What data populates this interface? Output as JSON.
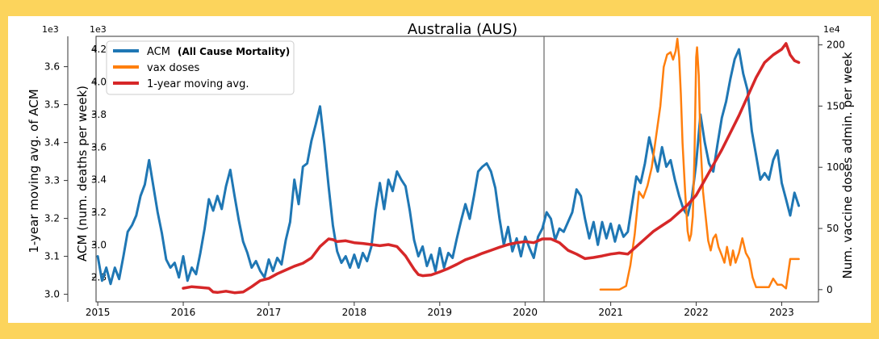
{
  "chart_data": {
    "type": "line",
    "title": "Australia (AUS)",
    "left_axis": {
      "label": "1-year moving avg. of ACM",
      "multiplier": "1e3",
      "ylim": [
        2.98,
        3.68
      ],
      "ticks": [
        3.0,
        3.1,
        3.2,
        3.3,
        3.4,
        3.5,
        3.6
      ],
      "tick_labels": [
        "3.0",
        "3.1",
        "3.2",
        "3.3",
        "3.4",
        "3.5",
        "3.6"
      ]
    },
    "inner_axis": {
      "label": "ACM (num. deaths per week)",
      "multiplier": "1e3",
      "ylim": [
        2.65,
        4.28
      ],
      "ticks": [
        2.8,
        3.0,
        3.2,
        3.4,
        3.6,
        3.8,
        4.0,
        4.2
      ],
      "tick_labels": [
        "2.8",
        "3.0",
        "3.2",
        "3.4",
        "3.6",
        "3.8",
        "4.0",
        "4.2"
      ]
    },
    "right_axis": {
      "label": "Num. vaccine doses admin. per week",
      "multiplier": "1e4",
      "ylim": [
        -10,
        207
      ],
      "ticks": [
        0,
        50,
        100,
        150,
        200
      ],
      "tick_labels": [
        "0",
        "50",
        "100",
        "150",
        "200"
      ]
    },
    "x_axis": {
      "xlim": [
        2014.98,
        2023.43
      ],
      "ticks": [
        2015,
        2016,
        2017,
        2018,
        2019,
        2020,
        2021,
        2022,
        2023
      ],
      "tick_labels": [
        "2015",
        "2016",
        "2017",
        "2018",
        "2019",
        "2020",
        "2021",
        "2022",
        "2023"
      ],
      "vertical_line": 2020.22
    },
    "grid": false,
    "legend": {
      "placement": "top-left",
      "entries": [
        {
          "label": "ACM",
          "note": "(All Cause Mortality)",
          "color": "#1f77b4"
        },
        {
          "label": "vax doses",
          "note": "",
          "color": "#ff7f0e"
        },
        {
          "label": "1-year moving avg.",
          "note": "",
          "color": "#d62728"
        }
      ]
    },
    "series": [
      {
        "name": "ACM",
        "axis": "inner",
        "color": "#1f77b4",
        "x": [
          2015.0,
          2015.05,
          2015.1,
          2015.15,
          2015.2,
          2015.25,
          2015.3,
          2015.35,
          2015.4,
          2015.45,
          2015.5,
          2015.55,
          2015.6,
          2015.65,
          2015.7,
          2015.75,
          2015.8,
          2015.85,
          2015.9,
          2015.95,
          2016.0,
          2016.05,
          2016.1,
          2016.15,
          2016.2,
          2016.25,
          2016.3,
          2016.35,
          2016.4,
          2016.45,
          2016.5,
          2016.55,
          2016.6,
          2016.65,
          2016.7,
          2016.75,
          2016.8,
          2016.85,
          2016.9,
          2016.95,
          2017.0,
          2017.05,
          2017.1,
          2017.15,
          2017.2,
          2017.25,
          2017.3,
          2017.35,
          2017.4,
          2017.45,
          2017.5,
          2017.55,
          2017.6,
          2017.65,
          2017.7,
          2017.75,
          2017.8,
          2017.85,
          2017.9,
          2017.95,
          2018.0,
          2018.05,
          2018.1,
          2018.15,
          2018.2,
          2018.25,
          2018.3,
          2018.35,
          2018.4,
          2018.45,
          2018.5,
          2018.55,
          2018.6,
          2018.65,
          2018.7,
          2018.75,
          2018.8,
          2018.85,
          2018.9,
          2018.95,
          2019.0,
          2019.05,
          2019.1,
          2019.15,
          2019.2,
          2019.25,
          2019.3,
          2019.35,
          2019.4,
          2019.45,
          2019.5,
          2019.55,
          2019.6,
          2019.65,
          2019.7,
          2019.75,
          2019.8,
          2019.85,
          2019.9,
          2019.95,
          2020.0,
          2020.05,
          2020.1,
          2020.15,
          2020.2,
          2020.25,
          2020.3,
          2020.35,
          2020.4,
          2020.45,
          2020.5,
          2020.55,
          2020.6,
          2020.65,
          2020.7,
          2020.75,
          2020.8,
          2020.85,
          2020.9,
          2020.95,
          2021.0,
          2021.05,
          2021.1,
          2021.15,
          2021.2,
          2021.25,
          2021.3,
          2021.35,
          2021.4,
          2021.45,
          2021.5,
          2021.55,
          2021.6,
          2021.65,
          2021.7,
          2021.75,
          2021.8,
          2021.85,
          2021.9,
          2021.95,
          2022.0,
          2022.05,
          2022.1,
          2022.15,
          2022.2,
          2022.25,
          2022.3,
          2022.35,
          2022.4,
          2022.45,
          2022.5,
          2022.55,
          2022.6,
          2022.65,
          2022.7,
          2022.75,
          2022.8,
          2022.85,
          2022.9,
          2022.95,
          2023.0,
          2023.05,
          2023.1,
          2023.15,
          2023.2
        ],
        "values": [
          2.93,
          2.78,
          2.86,
          2.76,
          2.86,
          2.79,
          2.93,
          3.08,
          3.12,
          3.18,
          3.3,
          3.37,
          3.52,
          3.36,
          3.2,
          3.07,
          2.91,
          2.86,
          2.89,
          2.8,
          2.93,
          2.78,
          2.86,
          2.82,
          2.95,
          3.1,
          3.28,
          3.21,
          3.3,
          3.22,
          3.36,
          3.46,
          3.3,
          3.15,
          3.02,
          2.95,
          2.86,
          2.9,
          2.84,
          2.8,
          2.91,
          2.84,
          2.92,
          2.88,
          3.03,
          3.14,
          3.4,
          3.25,
          3.48,
          3.5,
          3.64,
          3.74,
          3.85,
          3.62,
          3.36,
          3.12,
          2.96,
          2.89,
          2.93,
          2.86,
          2.94,
          2.86,
          2.95,
          2.9,
          2.99,
          3.21,
          3.38,
          3.22,
          3.4,
          3.33,
          3.45,
          3.4,
          3.36,
          3.21,
          3.03,
          2.93,
          2.99,
          2.87,
          2.94,
          2.84,
          2.98,
          2.86,
          2.95,
          2.92,
          3.04,
          3.15,
          3.25,
          3.16,
          3.3,
          3.45,
          3.48,
          3.5,
          3.45,
          3.35,
          3.16,
          3.0,
          3.11,
          2.96,
          3.04,
          2.93,
          3.05,
          2.98,
          2.92,
          3.05,
          3.1,
          3.2,
          3.16,
          3.03,
          3.1,
          3.08,
          3.14,
          3.2,
          3.34,
          3.3,
          3.16,
          3.04,
          3.14,
          3.0,
          3.14,
          3.04,
          3.13,
          3.02,
          3.12,
          3.05,
          3.08,
          3.25,
          3.42,
          3.38,
          3.5,
          3.66,
          3.55,
          3.45,
          3.6,
          3.48,
          3.52,
          3.4,
          3.3,
          3.22,
          3.18,
          3.29,
          3.5,
          3.8,
          3.63,
          3.5,
          3.45,
          3.62,
          3.78,
          3.88,
          4.02,
          4.14,
          4.2,
          4.05,
          3.95,
          3.7,
          3.55,
          3.4,
          3.44,
          3.4,
          3.52,
          3.58,
          3.38,
          3.28,
          3.18,
          3.32,
          3.24
        ]
      },
      {
        "name": "vax doses",
        "axis": "right",
        "color": "#ff7f0e",
        "x": [
          2020.88,
          2020.95,
          2021.02,
          2021.1,
          2021.18,
          2021.23,
          2021.28,
          2021.33,
          2021.38,
          2021.43,
          2021.48,
          2021.53,
          2021.58,
          2021.62,
          2021.66,
          2021.7,
          2021.73,
          2021.76,
          2021.78,
          2021.8,
          2021.82,
          2021.84,
          2021.87,
          2021.9,
          2021.92,
          2021.94,
          2021.96,
          2021.98,
          2022.0,
          2022.01,
          2022.03,
          2022.05,
          2022.08,
          2022.11,
          2022.14,
          2022.17,
          2022.2,
          2022.23,
          2022.26,
          2022.3,
          2022.33,
          2022.36,
          2022.4,
          2022.43,
          2022.46,
          2022.5,
          2022.54,
          2022.58,
          2022.62,
          2022.66,
          2022.7,
          2022.73,
          2022.76,
          2022.8,
          2022.85,
          2022.9,
          2022.95,
          2023.0,
          2023.05,
          2023.1,
          2023.15,
          2023.2
        ],
        "values": [
          0,
          0,
          0,
          0,
          3,
          20,
          45,
          80,
          75,
          85,
          100,
          125,
          150,
          182,
          192,
          194,
          188,
          195,
          205,
          190,
          160,
          120,
          80,
          48,
          40,
          45,
          60,
          110,
          190,
          198,
          175,
          120,
          80,
          60,
          40,
          32,
          42,
          45,
          35,
          28,
          22,
          35,
          20,
          32,
          22,
          30,
          42,
          30,
          25,
          10,
          2,
          2,
          2,
          2,
          2,
          9,
          4,
          4,
          1,
          25,
          25,
          25
        ]
      },
      {
        "name": "1-year moving avg.",
        "axis": "left",
        "color": "#d62728",
        "x": [
          2016.0,
          2016.1,
          2016.2,
          2016.3,
          2016.35,
          2016.4,
          2016.5,
          2016.6,
          2016.7,
          2016.8,
          2016.9,
          2017.0,
          2017.1,
          2017.2,
          2017.3,
          2017.4,
          2017.5,
          2017.6,
          2017.7,
          2017.75,
          2017.8,
          2017.9,
          2018.0,
          2018.1,
          2018.2,
          2018.3,
          2018.4,
          2018.5,
          2018.6,
          2018.7,
          2018.75,
          2018.8,
          2018.9,
          2019.0,
          2019.1,
          2019.2,
          2019.3,
          2019.4,
          2019.5,
          2019.6,
          2019.7,
          2019.8,
          2019.9,
          2020.0,
          2020.1,
          2020.2,
          2020.3,
          2020.4,
          2020.5,
          2020.6,
          2020.7,
          2020.8,
          2020.9,
          2021.0,
          2021.1,
          2021.2,
          2021.3,
          2021.4,
          2021.5,
          2021.6,
          2021.7,
          2021.8,
          2021.9,
          2022.0,
          2022.1,
          2022.2,
          2022.3,
          2022.4,
          2022.5,
          2022.6,
          2022.7,
          2022.8,
          2022.9,
          2023.0,
          2023.05,
          2023.1,
          2023.15,
          2023.2
        ],
        "values": [
          3.016,
          3.02,
          3.018,
          3.016,
          3.006,
          3.005,
          3.008,
          3.004,
          3.006,
          3.02,
          3.036,
          3.042,
          3.054,
          3.064,
          3.074,
          3.082,
          3.096,
          3.126,
          3.146,
          3.144,
          3.139,
          3.141,
          3.136,
          3.134,
          3.131,
          3.128,
          3.131,
          3.126,
          3.101,
          3.066,
          3.052,
          3.049,
          3.051,
          3.059,
          3.068,
          3.079,
          3.091,
          3.099,
          3.108,
          3.116,
          3.124,
          3.131,
          3.136,
          3.139,
          3.136,
          3.146,
          3.146,
          3.136,
          3.116,
          3.106,
          3.094,
          3.097,
          3.101,
          3.106,
          3.109,
          3.106,
          3.126,
          3.146,
          3.166,
          3.181,
          3.196,
          3.216,
          3.236,
          3.261,
          3.301,
          3.341,
          3.381,
          3.426,
          3.471,
          3.521,
          3.571,
          3.611,
          3.631,
          3.646,
          3.661,
          3.631,
          3.616,
          3.611
        ]
      }
    ]
  }
}
